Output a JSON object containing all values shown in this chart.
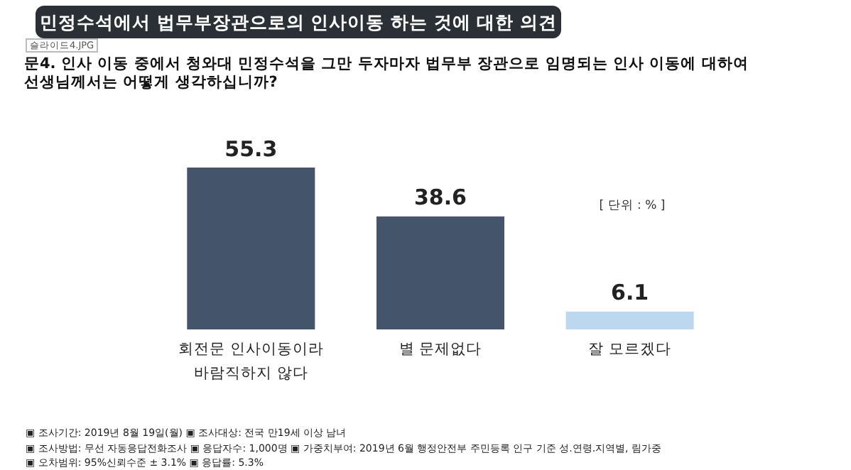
{
  "chart_data": {
    "type": "bar",
    "title": "민정수석에서 법무부장관으로의 인사이동 하는 것에 대한 의견",
    "subtitle": "문4. 인사 이동 중에서 청와대 민정수석을 그만 두자마자 법무부 장관으로 임명되는 인사 이동에 대하여 선생님께서는 어떻게 생각하십니까?",
    "categories": [
      "회전문 인사이동이라 바람직하지 않다",
      "별 문제없다",
      "잘 모르겠다"
    ],
    "values": [
      55.3,
      38.6,
      6.1
    ],
    "colors": [
      "#44546a",
      "#44546a",
      "#bdd7ee"
    ],
    "data_labels": true,
    "annotations": [
      "슬라이드4.JPG",
      "[ 단위 : % ]",
      "▣ 조사기간: 2019년 8월 19일(월) ▣ 조사대상: 전국 만19세 이상 남녀",
      "▣ 조사방법: 무선 자동응답전화조사 ▣ 응답자수: 1,000명 ▣ 가중치부여: 2019년 6월 행정안전부 주민등록 인구 기준 성.연령.지역별, 림가중",
      "▣ 오차범위: 95%신뢰수준 ± 3.1% ▣ 응답률: 5.3%"
    ]
  }
}
